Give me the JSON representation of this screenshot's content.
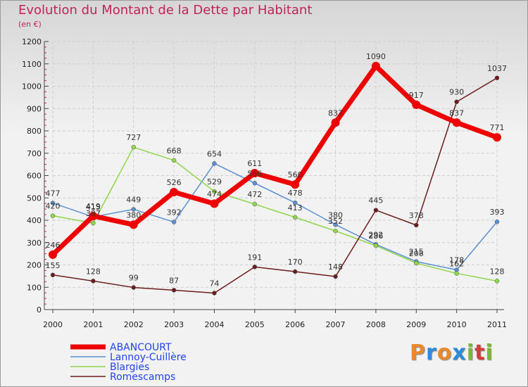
{
  "header": {
    "title": "Evolution du Montant de la Dette par Habitant",
    "subtitle": "(en €)"
  },
  "logo": {
    "text": "Proxiti",
    "colors": [
      "#e8892e",
      "#2e8bd6",
      "#e8892e",
      "#2e8bd6",
      "#7ab83a",
      "#d63a3a",
      "#7ab83a"
    ]
  },
  "chart_data": {
    "type": "line",
    "x": [
      "2000",
      "2001",
      "2002",
      "2003",
      "2004",
      "2005",
      "2006",
      "2007",
      "2008",
      "2009",
      "2010",
      "2011"
    ],
    "ylim": [
      0,
      1200
    ],
    "yticks": [
      0,
      100,
      200,
      300,
      400,
      500,
      600,
      700,
      800,
      900,
      1000,
      1100,
      1200
    ],
    "grid": true,
    "legend_position": "bottom-left",
    "series": [
      {
        "name": "Lannoy-Cuillère",
        "color": "#5b8fcf",
        "values": [
          477,
          415,
          449,
          392,
          654,
          566,
          478,
          380,
          292,
          215,
          178,
          393
        ]
      },
      {
        "name": "Blargies",
        "color": "#8fd64a",
        "values": [
          420,
          387,
          727,
          668,
          529,
          472,
          413,
          352,
          286,
          208,
          162,
          128
        ]
      },
      {
        "name": "Romescamps",
        "color": "#6b1c1c",
        "values": [
          155,
          128,
          99,
          87,
          74,
          191,
          170,
          148,
          445,
          378,
          930,
          1037
        ]
      },
      {
        "name": "ABANCOURT",
        "color": "#ee0000",
        "values": [
          246,
          419,
          380,
          526,
          474,
          611,
          560,
          837,
          1090,
          917,
          837,
          771
        ]
      }
    ],
    "legend_order": [
      "ABANCOURT",
      "Lannoy-Cuillère",
      "Blargies",
      "Romescamps"
    ]
  }
}
